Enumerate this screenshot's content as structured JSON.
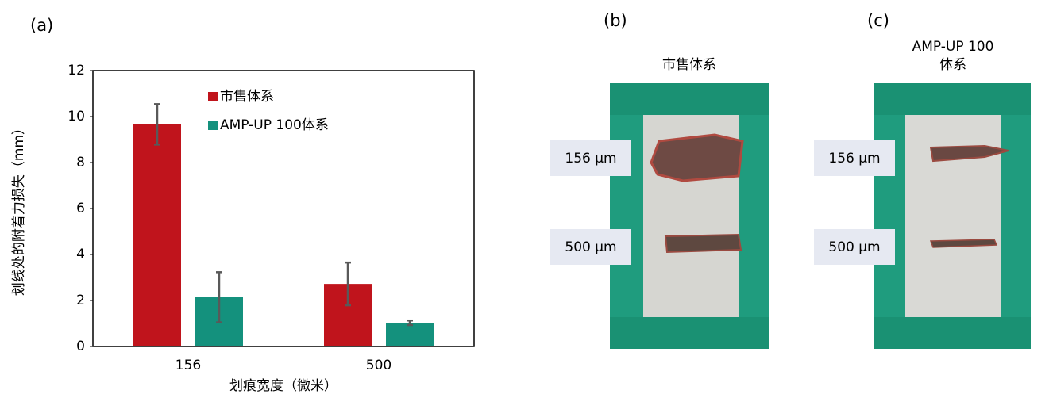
{
  "chart_data": {
    "type": "bar",
    "panel_label": "(a)",
    "x_label": "划痕宽度（微米）",
    "y_label": "划线处的附着力损失（mm）",
    "categories": [
      "156",
      "500"
    ],
    "series": [
      {
        "name": "市售体系",
        "color": "#c0141c",
        "values": [
          9.66,
          2.72
        ],
        "errors": [
          0.88,
          0.93
        ]
      },
      {
        "name": "AMP-UP 100体系",
        "color": "#14917d",
        "values": [
          2.14,
          1.03
        ],
        "errors": [
          1.09,
          0.1
        ]
      }
    ],
    "ylim": [
      0,
      12
    ],
    "yticks": [
      0,
      2,
      4,
      6,
      8,
      10,
      12
    ],
    "legend": "upper center",
    "error_color": "#595959"
  },
  "photos": [
    {
      "label": "(b)",
      "title": [
        "市售体系"
      ],
      "markers": [
        "156 µm",
        "500 µm"
      ]
    },
    {
      "label": "(c)",
      "title": [
        "AMP-UP 100",
        "体系"
      ],
      "markers": [
        "156 µm",
        "500 µm"
      ]
    }
  ]
}
